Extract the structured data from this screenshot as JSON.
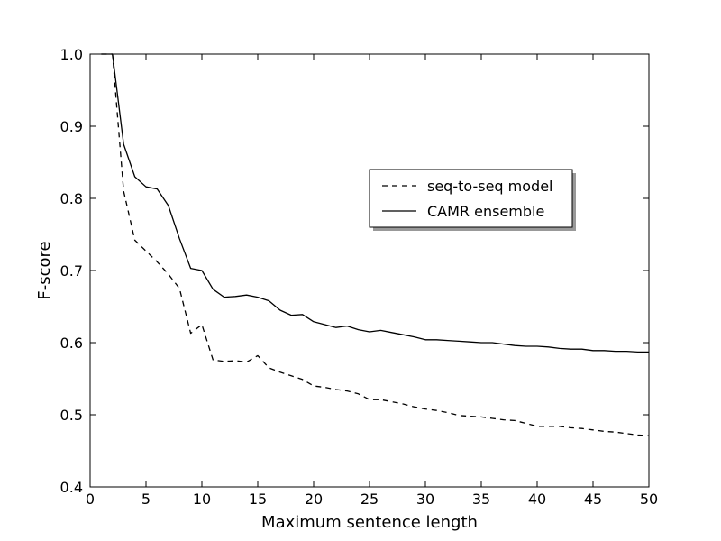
{
  "chart_data": {
    "type": "line",
    "xlabel": "Maximum sentence length",
    "ylabel": "F-score",
    "xlim": [
      0,
      50
    ],
    "ylim": [
      0.4,
      1.0
    ],
    "x_ticks": [
      "0",
      "5",
      "10",
      "15",
      "20",
      "25",
      "30",
      "35",
      "40",
      "45",
      "50"
    ],
    "y_ticks": [
      "0.4",
      "0.5",
      "0.6",
      "0.7",
      "0.8",
      "0.9",
      "1.0"
    ],
    "grid": false,
    "legend_position": "center-right",
    "series": [
      {
        "name": "seq-to-seq model",
        "style": "dashed",
        "color": "#000000",
        "x": [
          1,
          2,
          3,
          4,
          5,
          6,
          7,
          8,
          9,
          10,
          11,
          12,
          13,
          14,
          15,
          16,
          17,
          18,
          19,
          20,
          21,
          22,
          23,
          24,
          25,
          26,
          27,
          28,
          29,
          30,
          31,
          32,
          33,
          34,
          35,
          36,
          37,
          38,
          39,
          40,
          41,
          42,
          43,
          44,
          45,
          46,
          47,
          48,
          49,
          50
        ],
        "values": [
          1.0,
          1.0,
          0.81,
          0.742,
          0.727,
          0.712,
          0.695,
          0.675,
          0.613,
          0.625,
          0.576,
          0.574,
          0.575,
          0.573,
          0.582,
          0.565,
          0.559,
          0.554,
          0.549,
          0.54,
          0.538,
          0.535,
          0.533,
          0.529,
          0.521,
          0.521,
          0.518,
          0.515,
          0.511,
          0.508,
          0.506,
          0.503,
          0.499,
          0.498,
          0.497,
          0.495,
          0.493,
          0.492,
          0.488,
          0.484,
          0.484,
          0.484,
          0.482,
          0.481,
          0.479,
          0.477,
          0.476,
          0.474,
          0.472,
          0.471
        ]
      },
      {
        "name": "CAMR ensemble",
        "style": "solid",
        "color": "#000000",
        "x": [
          1,
          2,
          3,
          4,
          5,
          6,
          7,
          8,
          9,
          10,
          11,
          12,
          13,
          14,
          15,
          16,
          17,
          18,
          19,
          20,
          21,
          22,
          23,
          24,
          25,
          26,
          27,
          28,
          29,
          30,
          31,
          32,
          33,
          34,
          35,
          36,
          37,
          38,
          39,
          40,
          41,
          42,
          43,
          44,
          45,
          46,
          47,
          48,
          49,
          50
        ],
        "values": [
          1.0,
          1.0,
          0.875,
          0.83,
          0.816,
          0.813,
          0.79,
          0.744,
          0.703,
          0.7,
          0.674,
          0.663,
          0.664,
          0.666,
          0.663,
          0.658,
          0.645,
          0.638,
          0.639,
          0.629,
          0.625,
          0.621,
          0.623,
          0.618,
          0.615,
          0.617,
          0.614,
          0.611,
          0.608,
          0.604,
          0.604,
          0.603,
          0.602,
          0.601,
          0.6,
          0.6,
          0.598,
          0.596,
          0.595,
          0.595,
          0.594,
          0.592,
          0.591,
          0.591,
          0.589,
          0.589,
          0.588,
          0.588,
          0.587,
          0.587
        ]
      }
    ]
  }
}
